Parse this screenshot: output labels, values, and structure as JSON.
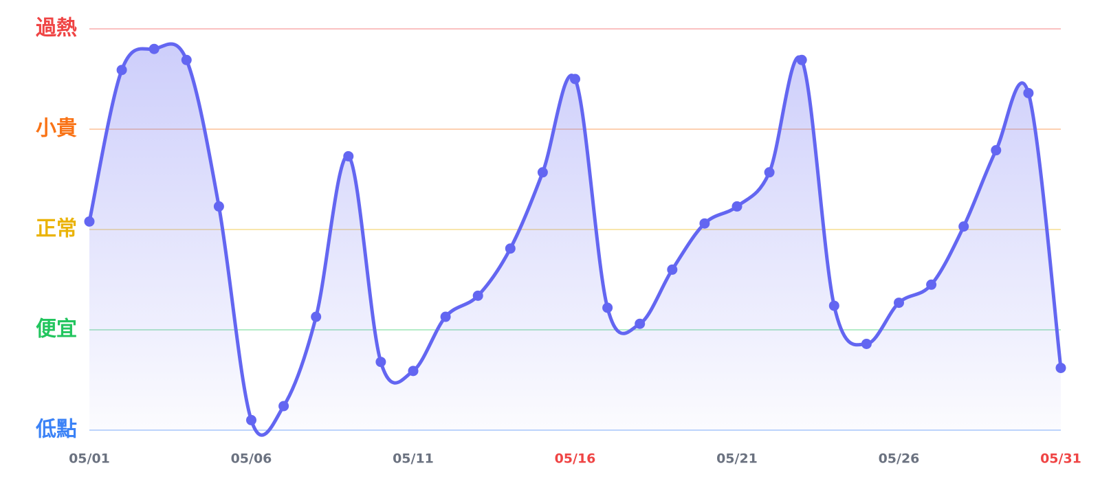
{
  "chart_data": {
    "type": "line",
    "categories": [
      "05/01",
      null,
      null,
      null,
      null,
      "05/06",
      null,
      null,
      null,
      null,
      "05/11",
      null,
      null,
      null,
      null,
      "05/16",
      null,
      null,
      null,
      null,
      "05/21",
      null,
      null,
      null,
      null,
      "05/26",
      null,
      null,
      null,
      null,
      "05/31"
    ],
    "category_colors": [
      "#6b7280",
      null,
      null,
      null,
      null,
      "#6b7280",
      null,
      null,
      null,
      null,
      "#6b7280",
      null,
      null,
      null,
      null,
      "#ef4444",
      null,
      null,
      null,
      null,
      "#6b7280",
      null,
      null,
      null,
      null,
      "#6b7280",
      null,
      null,
      null,
      null,
      "#ef4444"
    ],
    "series": [
      {
        "color": "#6366f1",
        "values": [
          2.08,
          3.59,
          3.8,
          3.69,
          2.23,
          0.1,
          0.24,
          1.13,
          2.73,
          0.68,
          0.59,
          1.13,
          1.34,
          1.81,
          2.57,
          3.5,
          1.22,
          1.06,
          1.6,
          2.06,
          2.23,
          2.57,
          3.69,
          1.24,
          0.86,
          1.27,
          1.45,
          2.03,
          2.79,
          3.36,
          0.62
        ]
      }
    ],
    "ylim": [
      0,
      4
    ],
    "yticks": [
      {
        "value": 0,
        "label": "低點"
      },
      {
        "value": 1,
        "label": "便宜"
      },
      {
        "value": 2,
        "label": "正常"
      },
      {
        "value": 3,
        "label": "小貴"
      },
      {
        "value": 4,
        "label": "過熱"
      }
    ],
    "ytick_colors": [
      "#3b82f6",
      "#22c55e",
      "#eab308",
      "#f97316",
      "#ef4444"
    ],
    "grid": true
  }
}
